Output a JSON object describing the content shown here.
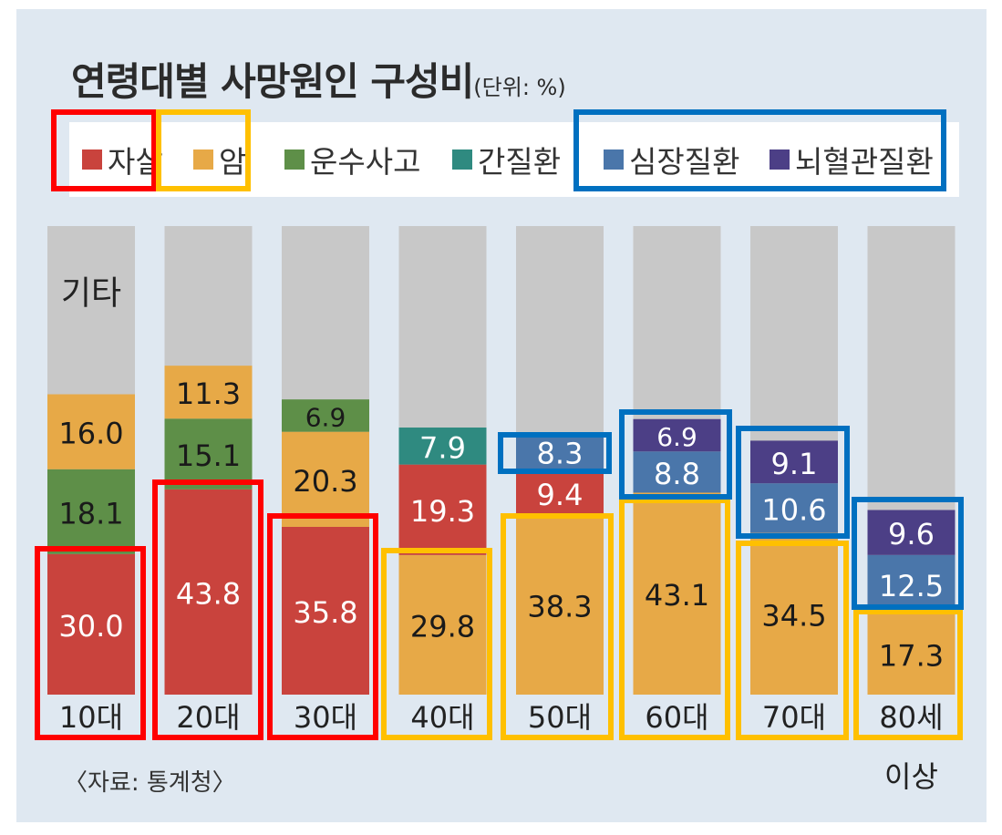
{
  "title": "연령대별 사망원인 구성비",
  "unit": "(단위: %)",
  "source": "〈자료: 통계청〉",
  "legend": [
    {
      "name": "자살",
      "color": "#c9433d"
    },
    {
      "name": "암",
      "color": "#e7a947"
    },
    {
      "name": "운수사고",
      "color": "#5e8f48"
    },
    {
      "name": "간질환",
      "color": "#2f8a80"
    },
    {
      "name": "심장질환",
      "color": "#4a76aa"
    },
    {
      "name": "뇌혈관질환",
      "color": "#4c3f86"
    }
  ],
  "colors": {
    "other": "#c8c8c8",
    "highlight_red": "#ff0000",
    "highlight_orange": "#ffc000",
    "highlight_blue": "#0070c0"
  },
  "chart_data": {
    "type": "bar",
    "stacked": true,
    "title": "연령대별 사망원인 구성비",
    "unit_label": "(단위: %)",
    "other_label": "기타",
    "categories": [
      "10대",
      "20대",
      "30대",
      "40대",
      "50대",
      "60대",
      "70대",
      "80세 이상"
    ],
    "category_lines": [
      [
        "10대"
      ],
      [
        "20대"
      ],
      [
        "30대"
      ],
      [
        "40대"
      ],
      [
        "50대"
      ],
      [
        "60대"
      ],
      [
        "70대"
      ],
      [
        "80세",
        "이상"
      ]
    ],
    "ylim": [
      0,
      100
    ],
    "stacks": [
      [
        {
          "name": "자살",
          "value": 30.0
        },
        {
          "name": "운수사고",
          "value": 18.1
        },
        {
          "name": "암",
          "value": 16.0
        }
      ],
      [
        {
          "name": "자살",
          "value": 43.8
        },
        {
          "name": "운수사고",
          "value": 15.1
        },
        {
          "name": "암",
          "value": 11.3
        }
      ],
      [
        {
          "name": "자살",
          "value": 35.8
        },
        {
          "name": "암",
          "value": 20.3
        },
        {
          "name": "운수사고",
          "value": 6.9
        }
      ],
      [
        {
          "name": "암",
          "value": 29.8
        },
        {
          "name": "자살",
          "value": 19.3
        },
        {
          "name": "간질환",
          "value": 7.9
        }
      ],
      [
        {
          "name": "암",
          "value": 38.3
        },
        {
          "name": "자살",
          "value": 9.4
        },
        {
          "name": "심장질환",
          "value": 8.3
        }
      ],
      [
        {
          "name": "암",
          "value": 43.1
        },
        {
          "name": "심장질환",
          "value": 8.8
        },
        {
          "name": "뇌혈관질환",
          "value": 6.9
        }
      ],
      [
        {
          "name": "암",
          "value": 34.5
        },
        {
          "name": "심장질환",
          "value": 10.6
        },
        {
          "name": "뇌혈관질환",
          "value": 9.1
        }
      ],
      [
        {
          "name": "암",
          "value": 17.3
        },
        {
          "name": "심장질환",
          "value": 12.5
        },
        {
          "name": "뇌혈관질환",
          "value": 9.6
        }
      ]
    ]
  }
}
